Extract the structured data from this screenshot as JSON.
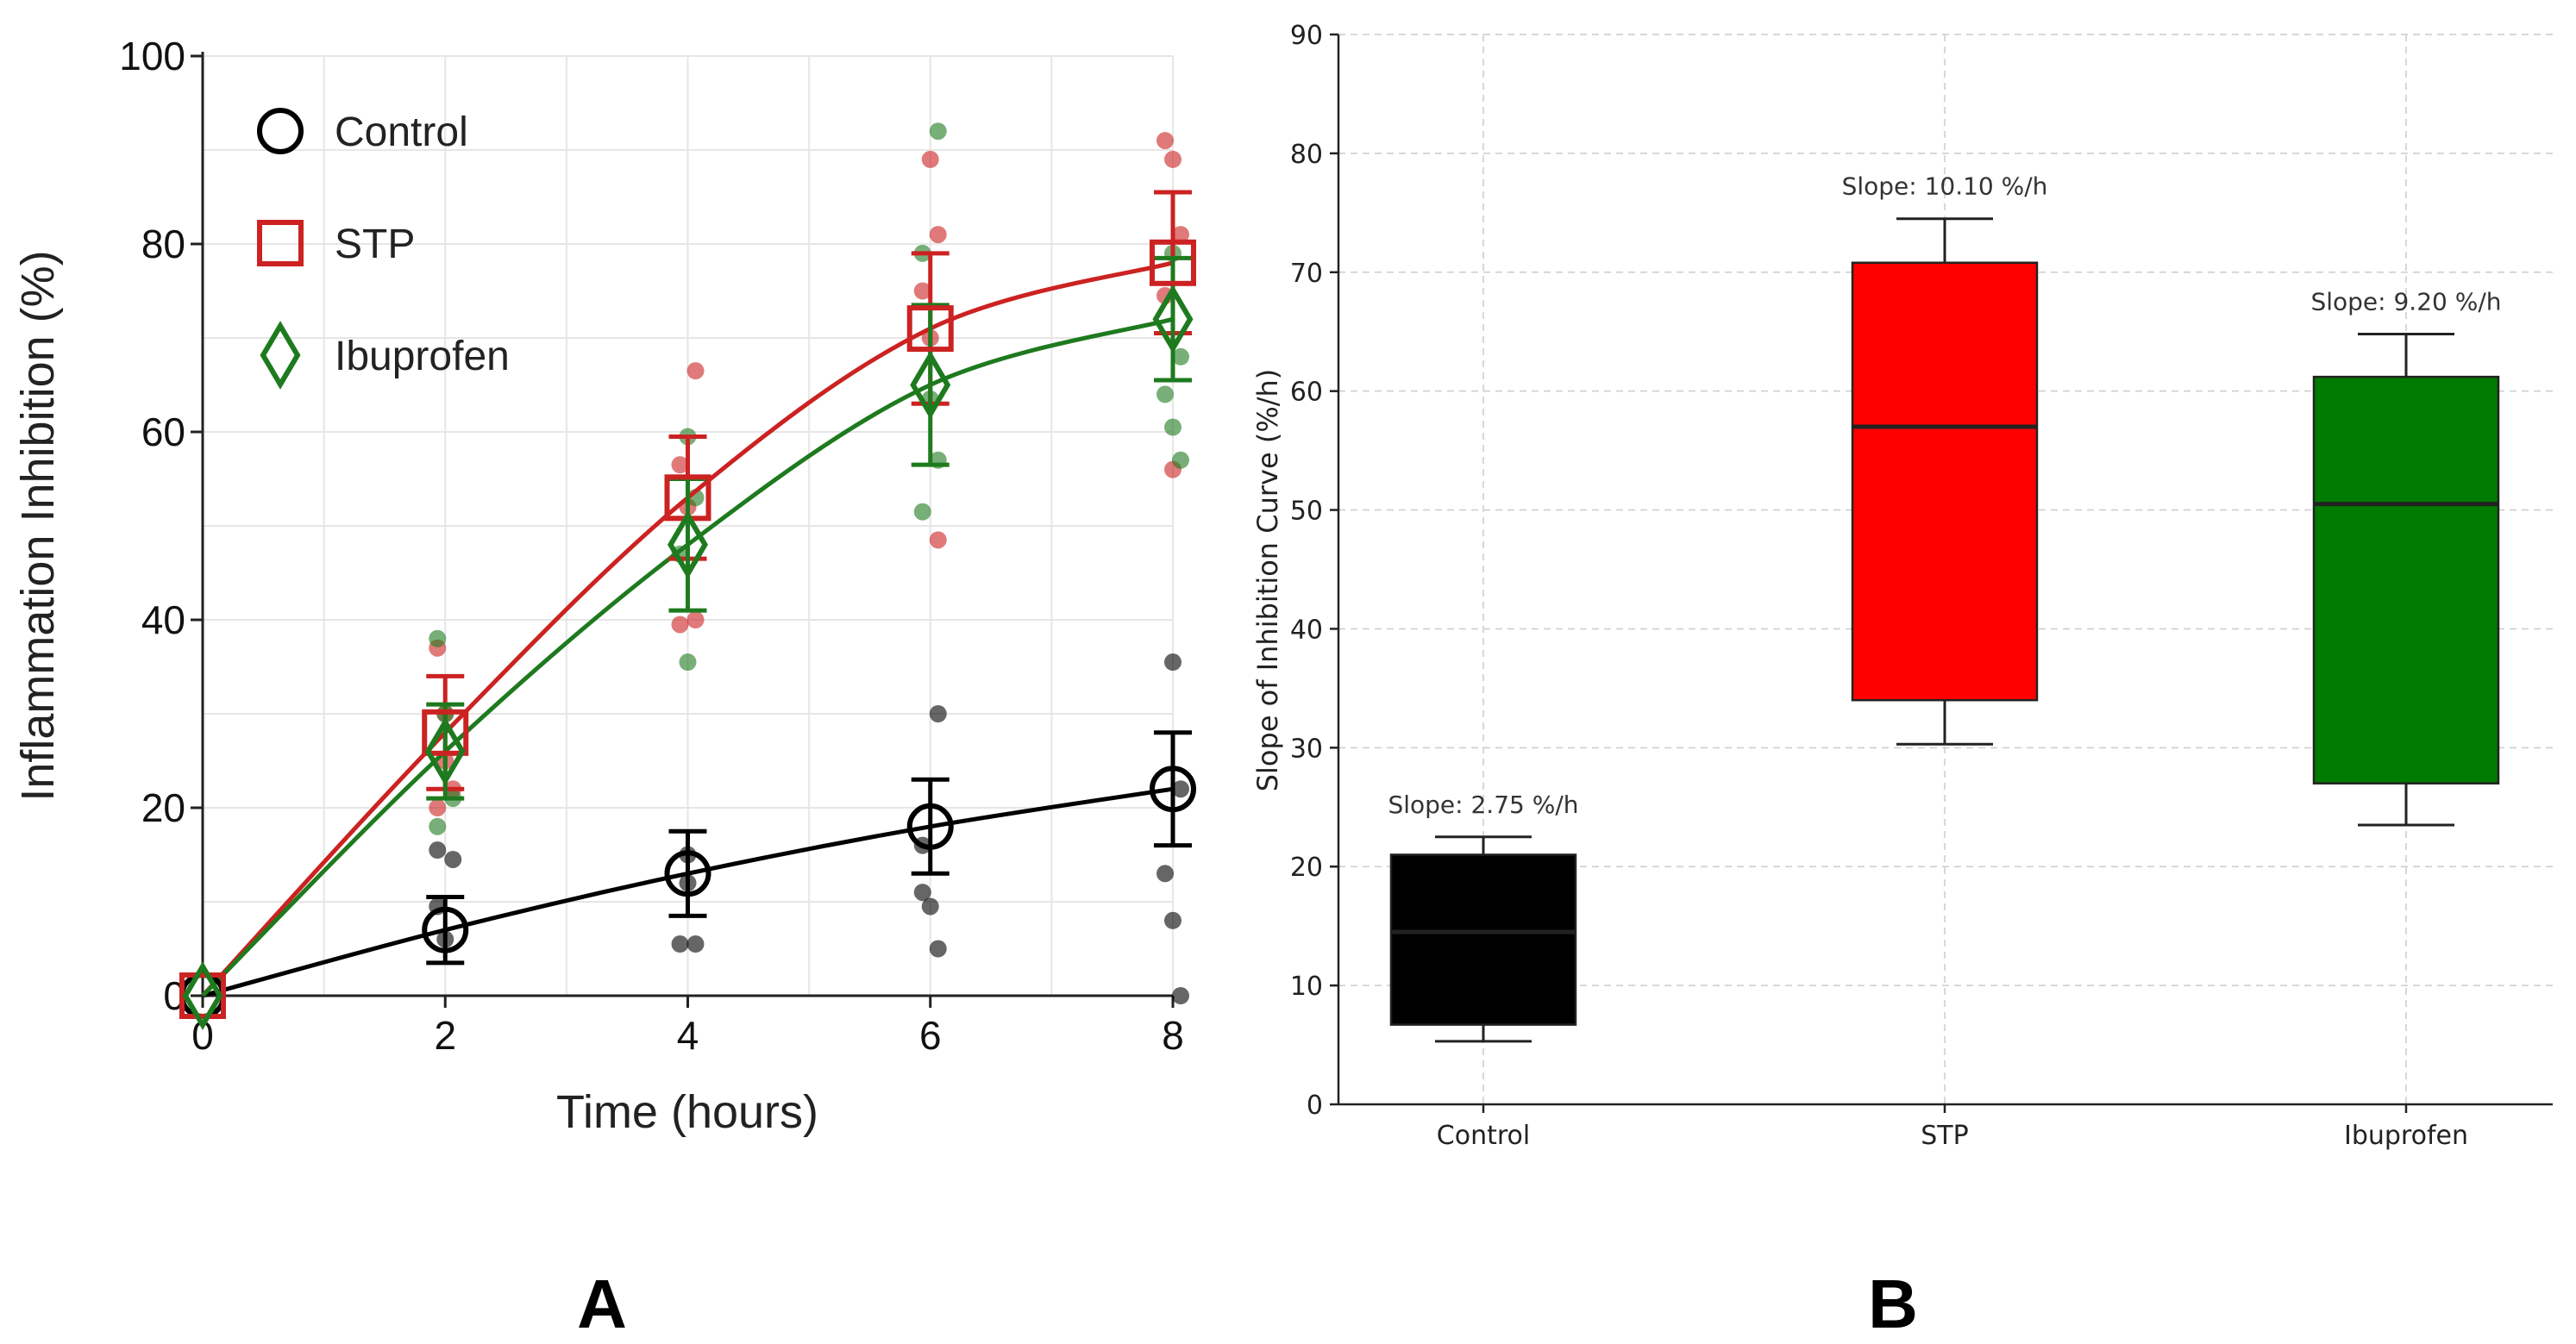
{
  "chart_data": [
    {
      "panel_label": "A",
      "type": "line",
      "xlabel": "Time (hours)",
      "ylabel": "Inflammation Inhibition (%)",
      "xlim": [
        0,
        8
      ],
      "ylim": [
        0,
        100
      ],
      "xticks": [
        0,
        2,
        4,
        6,
        8
      ],
      "yticks": [
        0,
        20,
        40,
        60,
        80,
        100
      ],
      "grid": true,
      "legend": "top-left",
      "series": [
        {
          "name": "Control",
          "color": "#000000",
          "marker": "circle",
          "x": [
            0,
            2,
            4,
            6,
            8
          ],
          "mean": [
            0,
            7,
            13,
            18,
            22
          ],
          "err": [
            0,
            3.5,
            4.5,
            5,
            6
          ],
          "points": [
            [
              2,
              9.5
            ],
            [
              2,
              6
            ],
            [
              2,
              14.5
            ],
            [
              2,
              15.5
            ],
            [
              4,
              12
            ],
            [
              4,
              5.5
            ],
            [
              4,
              5.5
            ],
            [
              4,
              15
            ],
            [
              6,
              30
            ],
            [
              6,
              11
            ],
            [
              6,
              9.5
            ],
            [
              6,
              5
            ],
            [
              6,
              16
            ],
            [
              8,
              35.5
            ],
            [
              8,
              22
            ],
            [
              8,
              13
            ],
            [
              8,
              8
            ],
            [
              8,
              0
            ]
          ]
        },
        {
          "name": "STP",
          "color": "#cc2222",
          "marker": "square",
          "x": [
            0,
            2,
            4,
            6,
            8
          ],
          "mean": [
            0,
            28,
            53,
            71,
            78
          ],
          "err": [
            0,
            6,
            6.5,
            8,
            7.5
          ],
          "points": [
            [
              2,
              37
            ],
            [
              2,
              30
            ],
            [
              2,
              22
            ],
            [
              2,
              20
            ],
            [
              2,
              25
            ],
            [
              4,
              66.5
            ],
            [
              4,
              56.5
            ],
            [
              4,
              52
            ],
            [
              4,
              40
            ],
            [
              4,
              39.5
            ],
            [
              6,
              89
            ],
            [
              6,
              81
            ],
            [
              6,
              75
            ],
            [
              6,
              70
            ],
            [
              6,
              48.5
            ],
            [
              8,
              91
            ],
            [
              8,
              89
            ],
            [
              8,
              81
            ],
            [
              8,
              74.5
            ],
            [
              8,
              56
            ]
          ]
        },
        {
          "name": "Ibuprofen",
          "color": "#1e7a1e",
          "marker": "diamond",
          "x": [
            0,
            2,
            4,
            6,
            8
          ],
          "mean": [
            0,
            26,
            48,
            65,
            72
          ],
          "err": [
            0,
            5,
            7,
            8.5,
            6.5
          ],
          "points": [
            [
              2,
              38
            ],
            [
              2,
              30
            ],
            [
              2,
              21
            ],
            [
              2,
              18
            ],
            [
              4,
              59.5
            ],
            [
              4,
              53
            ],
            [
              4,
              47
            ],
            [
              4,
              35.5
            ],
            [
              6,
              92
            ],
            [
              6,
              79
            ],
            [
              6,
              63.5
            ],
            [
              6,
              57
            ],
            [
              6,
              51.5
            ],
            [
              8,
              79
            ],
            [
              8,
              68
            ],
            [
              8,
              64
            ],
            [
              8,
              60.5
            ],
            [
              8,
              57
            ]
          ]
        }
      ]
    },
    {
      "panel_label": "B",
      "type": "box",
      "categories": [
        "Control",
        "STP",
        "Ibuprofen"
      ],
      "ylabel": "Slope of Inhibition Curve (%/h)",
      "xlabel": "",
      "ylim": [
        0,
        90
      ],
      "yticks": [
        0,
        10,
        20,
        30,
        40,
        50,
        60,
        70,
        80,
        90
      ],
      "grid": true,
      "boxes": [
        {
          "name": "Control",
          "color": "#000000",
          "whisker_low": 5.3,
          "q1": 6.7,
          "median": 14.5,
          "q3": 21,
          "whisker_high": 22.5,
          "annotation": "Slope: 2.75 %/h"
        },
        {
          "name": "STP",
          "color": "#ff0000",
          "whisker_low": 30.3,
          "q1": 34,
          "median": 57,
          "q3": 70.8,
          "whisker_high": 74.5,
          "annotation": "Slope: 10.10 %/h"
        },
        {
          "name": "Ibuprofen",
          "color": "#007a00",
          "whisker_low": 23.5,
          "q1": 27,
          "median": 50.5,
          "q3": 61.2,
          "whisker_high": 64.8,
          "annotation": "Slope: 9.20 %/h"
        }
      ]
    }
  ]
}
